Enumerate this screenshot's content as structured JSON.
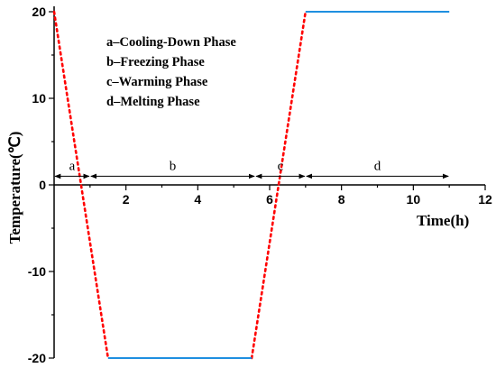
{
  "chart_data": {
    "type": "line",
    "xlabel": "Time(h)",
    "ylabel": "Temperature(℃)",
    "xlim": [
      0,
      12
    ],
    "ylim": [
      -20,
      20
    ],
    "xticks": [
      "2",
      "4",
      "6",
      "8",
      "10",
      "12"
    ],
    "yticks": [
      "-20",
      "-10",
      "0",
      "10",
      "20"
    ],
    "series": [
      {
        "style": "dotted",
        "color": "#ff0000",
        "segments": [
          [
            [
              0,
              20
            ],
            [
              1.5,
              -20
            ]
          ],
          [
            [
              5.5,
              -20
            ],
            [
              7,
              20
            ]
          ]
        ]
      },
      {
        "style": "solid",
        "color": "#1f8fe0",
        "segments": [
          [
            [
              1.5,
              -20
            ],
            [
              5.5,
              -20
            ]
          ],
          [
            [
              7,
              20
            ],
            [
              11,
              20
            ]
          ]
        ]
      }
    ],
    "phases": [
      {
        "label": "a",
        "start": 0,
        "end": 1.0
      },
      {
        "label": "b",
        "start": 1.0,
        "end": 5.6
      },
      {
        "label": "c",
        "start": 5.6,
        "end": 7.0
      },
      {
        "label": "d",
        "start": 7.0,
        "end": 11.0
      }
    ],
    "phase_y": 1,
    "legend": [
      "a–Cooling-Down Phase",
      "b–Freezing Phase",
      "c–Warming Phase",
      "d–Melting Phase"
    ],
    "legend_placement": "top-left",
    "grid": false
  }
}
